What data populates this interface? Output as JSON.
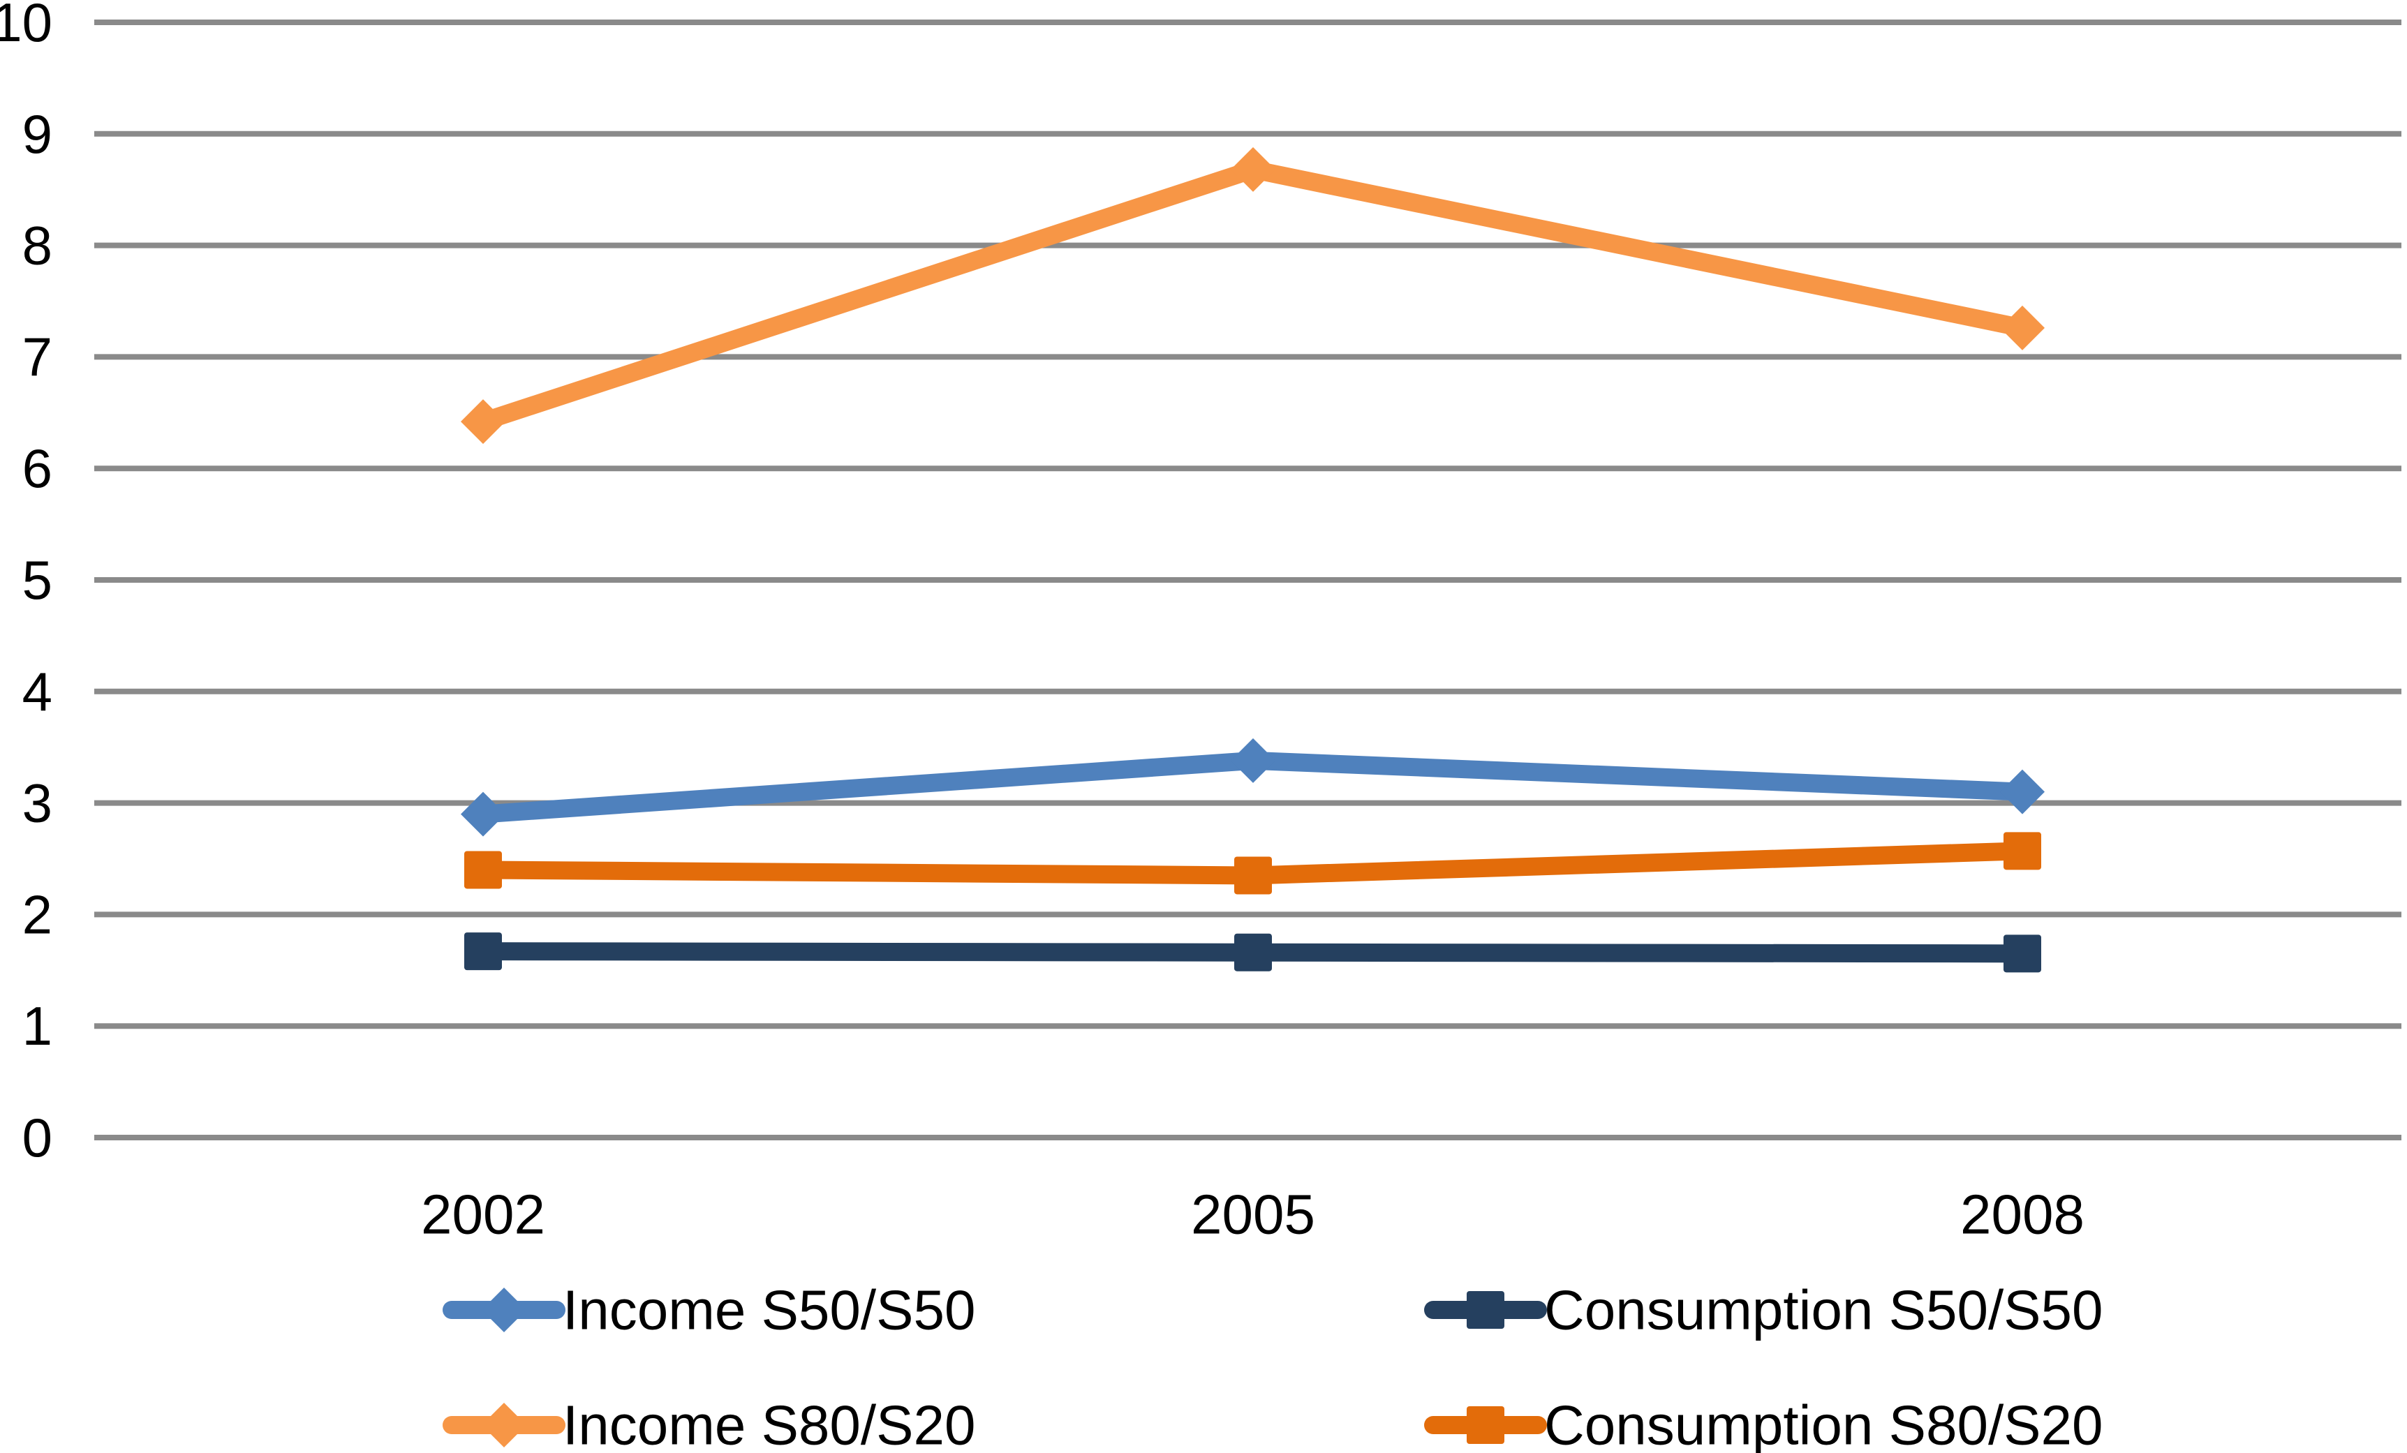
{
  "chart_data": {
    "type": "line",
    "title": "",
    "categories": [
      "2002",
      "2005",
      "2008"
    ],
    "series": [
      {
        "name": "Income S50/S50",
        "color": "#4F81BD",
        "marker": "diamond",
        "values": [
          2.9,
          3.38,
          3.1
        ]
      },
      {
        "name": "Income S80/S20",
        "color": "#F79646",
        "marker": "diamond",
        "values": [
          6.42,
          8.68,
          7.26
        ]
      },
      {
        "name": "Consumption S50/S50",
        "color": "#25405F",
        "marker": "square",
        "values": [
          1.67,
          1.66,
          1.65
        ]
      },
      {
        "name": "Consumption S80/S20",
        "color": "#E36C0A",
        "marker": "square",
        "values": [
          2.4,
          2.35,
          2.57
        ]
      }
    ],
    "y_axis": {
      "min": 0,
      "max": 10,
      "step": 1,
      "ticks": [
        0,
        1,
        2,
        3,
        4,
        5,
        6,
        7,
        8,
        9,
        10
      ]
    },
    "x_axis": {
      "ticks": [
        "2002",
        "2005",
        "2008"
      ]
    },
    "grid": {
      "visible": true,
      "color": "#8A8A8A"
    },
    "legend": {
      "position": "bottom",
      "items": [
        {
          "label": "Income S50/S50",
          "series_index": 0,
          "row": 0,
          "col": 0
        },
        {
          "label": "Consumption S50/S50",
          "series_index": 2,
          "row": 0,
          "col": 1
        },
        {
          "label": "Income S80/S20",
          "series_index": 1,
          "row": 1,
          "col": 0
        },
        {
          "label": "Consumption S80/S20",
          "series_index": 3,
          "row": 1,
          "col": 1
        }
      ]
    },
    "text_color": "#000000",
    "background_color": "#FFFFFF"
  }
}
